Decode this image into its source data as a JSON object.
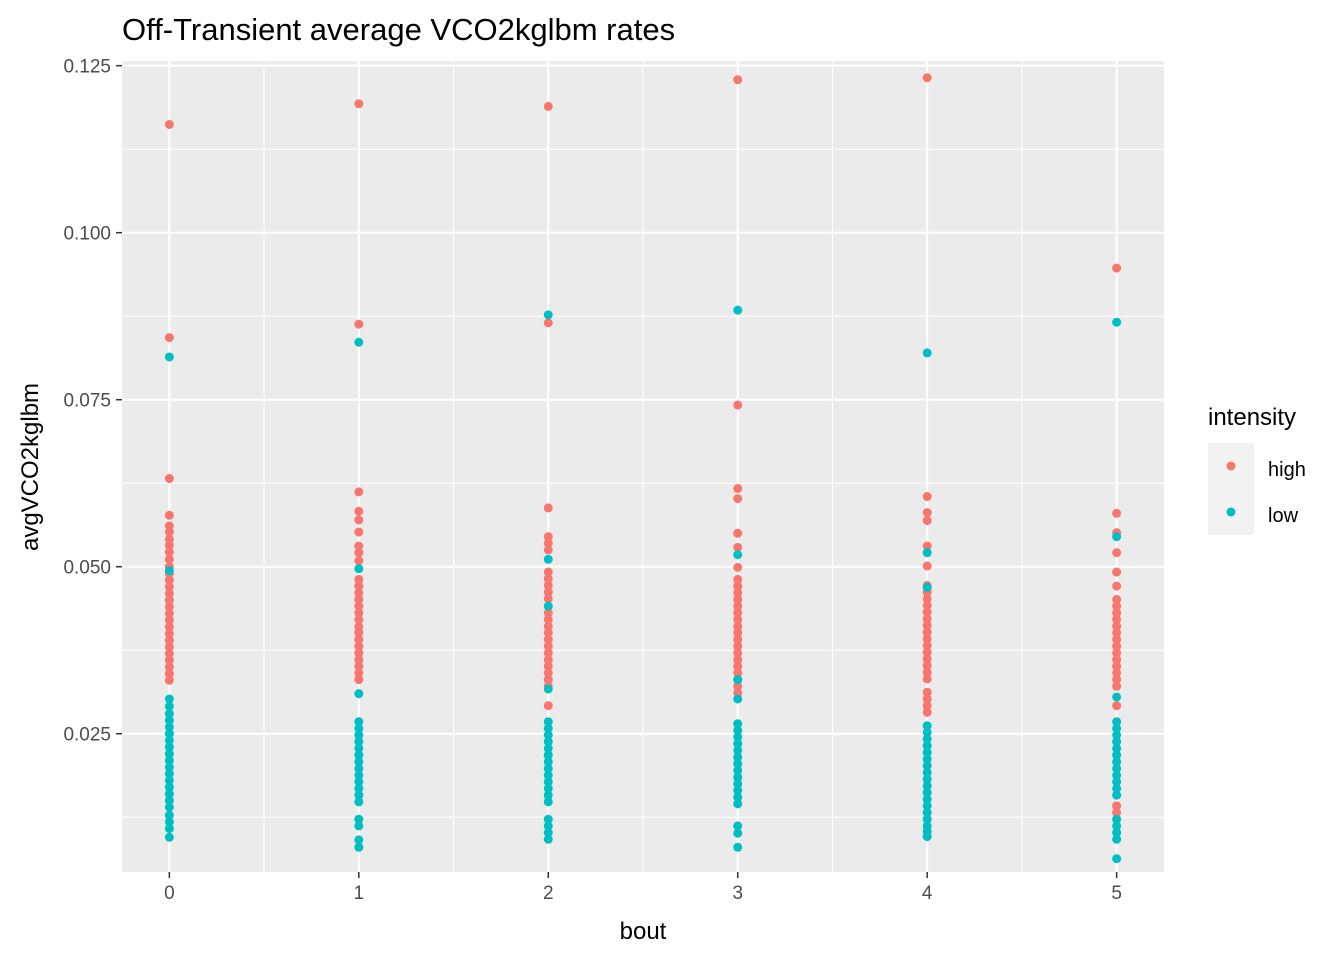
{
  "chart_data": {
    "type": "scatter",
    "title": "Off-Transient average VCO2kglbm rates",
    "xlabel": "bout",
    "ylabel": "avgVCO2kglbm",
    "xlim": [
      -0.25,
      5.25
    ],
    "ylim": [
      0.0043,
      0.1257
    ],
    "x_ticks": [
      "0",
      "1",
      "2",
      "3",
      "4",
      "5"
    ],
    "y_ticks": [
      "0.025",
      "0.050",
      "0.075",
      "0.100",
      "0.125"
    ],
    "grid": true,
    "legend": {
      "title": "intensity",
      "position": "right"
    },
    "series": [
      {
        "name": "high",
        "color": "#F8766D",
        "points": [
          [
            0,
            0.1162
          ],
          [
            0,
            0.0843
          ],
          [
            0,
            0.0632
          ],
          [
            0,
            0.0577
          ],
          [
            0,
            0.0561
          ],
          [
            0,
            0.0552
          ],
          [
            0,
            0.0541
          ],
          [
            0,
            0.0532
          ],
          [
            0,
            0.0522
          ],
          [
            0,
            0.0511
          ],
          [
            0,
            0.05
          ],
          [
            0,
            0.049
          ],
          [
            0,
            0.048
          ],
          [
            0,
            0.047
          ],
          [
            0,
            0.046
          ],
          [
            0,
            0.045
          ],
          [
            0,
            0.044
          ],
          [
            0,
            0.043
          ],
          [
            0,
            0.042
          ],
          [
            0,
            0.041
          ],
          [
            0,
            0.04
          ],
          [
            0,
            0.039
          ],
          [
            0,
            0.038
          ],
          [
            0,
            0.037
          ],
          [
            0,
            0.036
          ],
          [
            0,
            0.035
          ],
          [
            0,
            0.034
          ],
          [
            0,
            0.033
          ],
          [
            1,
            0.1193
          ],
          [
            1,
            0.0863
          ],
          [
            1,
            0.0612
          ],
          [
            1,
            0.0583
          ],
          [
            1,
            0.057
          ],
          [
            1,
            0.0552
          ],
          [
            1,
            0.0531
          ],
          [
            1,
            0.0521
          ],
          [
            1,
            0.0509
          ],
          [
            1,
            0.0481
          ],
          [
            1,
            0.0471
          ],
          [
            1,
            0.0461
          ],
          [
            1,
            0.0451
          ],
          [
            1,
            0.0441
          ],
          [
            1,
            0.0431
          ],
          [
            1,
            0.0421
          ],
          [
            1,
            0.041
          ],
          [
            1,
            0.0401
          ],
          [
            1,
            0.0391
          ],
          [
            1,
            0.0381
          ],
          [
            1,
            0.0371
          ],
          [
            1,
            0.0361
          ],
          [
            1,
            0.0351
          ],
          [
            1,
            0.0341
          ],
          [
            1,
            0.0331
          ],
          [
            2,
            0.1189
          ],
          [
            2,
            0.0865
          ],
          [
            2,
            0.0588
          ],
          [
            2,
            0.0545
          ],
          [
            2,
            0.0535
          ],
          [
            2,
            0.0525
          ],
          [
            2,
            0.0492
          ],
          [
            2,
            0.0482
          ],
          [
            2,
            0.0472
          ],
          [
            2,
            0.0462
          ],
          [
            2,
            0.0452
          ],
          [
            2,
            0.0431
          ],
          [
            2,
            0.0421
          ],
          [
            2,
            0.0411
          ],
          [
            2,
            0.0401
          ],
          [
            2,
            0.0391
          ],
          [
            2,
            0.0381
          ],
          [
            2,
            0.0371
          ],
          [
            2,
            0.0361
          ],
          [
            2,
            0.0351
          ],
          [
            2,
            0.0341
          ],
          [
            2,
            0.0331
          ],
          [
            2,
            0.0321
          ],
          [
            2,
            0.0292
          ],
          [
            3,
            0.1229
          ],
          [
            3,
            0.0742
          ],
          [
            3,
            0.0617
          ],
          [
            3,
            0.0602
          ],
          [
            3,
            0.055
          ],
          [
            3,
            0.0529
          ],
          [
            3,
            0.0499
          ],
          [
            3,
            0.0481
          ],
          [
            3,
            0.0471
          ],
          [
            3,
            0.0461
          ],
          [
            3,
            0.0451
          ],
          [
            3,
            0.0441
          ],
          [
            3,
            0.0431
          ],
          [
            3,
            0.0421
          ],
          [
            3,
            0.0411
          ],
          [
            3,
            0.0401
          ],
          [
            3,
            0.0391
          ],
          [
            3,
            0.0381
          ],
          [
            3,
            0.0371
          ],
          [
            3,
            0.0361
          ],
          [
            3,
            0.0351
          ],
          [
            3,
            0.0341
          ],
          [
            3,
            0.0331
          ],
          [
            3,
            0.0321
          ],
          [
            3,
            0.0311
          ],
          [
            4,
            0.1232
          ],
          [
            4,
            0.0605
          ],
          [
            4,
            0.0581
          ],
          [
            4,
            0.0569
          ],
          [
            4,
            0.0531
          ],
          [
            4,
            0.0501
          ],
          [
            4,
            0.0472
          ],
          [
            4,
            0.0462
          ],
          [
            4,
            0.0452
          ],
          [
            4,
            0.0442
          ],
          [
            4,
            0.0432
          ],
          [
            4,
            0.0422
          ],
          [
            4,
            0.0412
          ],
          [
            4,
            0.0402
          ],
          [
            4,
            0.0392
          ],
          [
            4,
            0.0382
          ],
          [
            4,
            0.0372
          ],
          [
            4,
            0.0362
          ],
          [
            4,
            0.0352
          ],
          [
            4,
            0.0342
          ],
          [
            4,
            0.0332
          ],
          [
            4,
            0.0312
          ],
          [
            4,
            0.0302
          ],
          [
            4,
            0.0292
          ],
          [
            4,
            0.0282
          ],
          [
            5,
            0.0947
          ],
          [
            5,
            0.058
          ],
          [
            5,
            0.0551
          ],
          [
            5,
            0.0521
          ],
          [
            5,
            0.0492
          ],
          [
            5,
            0.0471
          ],
          [
            5,
            0.0451
          ],
          [
            5,
            0.0441
          ],
          [
            5,
            0.0431
          ],
          [
            5,
            0.0421
          ],
          [
            5,
            0.0411
          ],
          [
            5,
            0.0401
          ],
          [
            5,
            0.0391
          ],
          [
            5,
            0.0381
          ],
          [
            5,
            0.0371
          ],
          [
            5,
            0.0361
          ],
          [
            5,
            0.0351
          ],
          [
            5,
            0.0341
          ],
          [
            5,
            0.0331
          ],
          [
            5,
            0.0321
          ],
          [
            5,
            0.0292
          ],
          [
            5,
            0.0142
          ],
          [
            5,
            0.0132
          ]
        ]
      },
      {
        "name": "low",
        "color": "#00BFC4",
        "points": [
          [
            0,
            0.0814
          ],
          [
            0,
            0.0494
          ],
          [
            0,
            0.0302
          ],
          [
            0,
            0.0291
          ],
          [
            0,
            0.028
          ],
          [
            0,
            0.027
          ],
          [
            0,
            0.026
          ],
          [
            0,
            0.025
          ],
          [
            0,
            0.024
          ],
          [
            0,
            0.023
          ],
          [
            0,
            0.022
          ],
          [
            0,
            0.021
          ],
          [
            0,
            0.02
          ],
          [
            0,
            0.019
          ],
          [
            0,
            0.018
          ],
          [
            0,
            0.017
          ],
          [
            0,
            0.016
          ],
          [
            0,
            0.015
          ],
          [
            0,
            0.014
          ],
          [
            0,
            0.0128
          ],
          [
            0,
            0.0118
          ],
          [
            0,
            0.0108
          ],
          [
            0,
            0.0095
          ],
          [
            1,
            0.0836
          ],
          [
            1,
            0.0497
          ],
          [
            1,
            0.031
          ],
          [
            1,
            0.0268
          ],
          [
            1,
            0.0258
          ],
          [
            1,
            0.0248
          ],
          [
            1,
            0.0238
          ],
          [
            1,
            0.0228
          ],
          [
            1,
            0.0218
          ],
          [
            1,
            0.0208
          ],
          [
            1,
            0.0198
          ],
          [
            1,
            0.0188
          ],
          [
            1,
            0.0178
          ],
          [
            1,
            0.0168
          ],
          [
            1,
            0.0158
          ],
          [
            1,
            0.0148
          ],
          [
            1,
            0.0122
          ],
          [
            1,
            0.0112
          ],
          [
            1,
            0.0091
          ],
          [
            1,
            0.008
          ],
          [
            2,
            0.0877
          ],
          [
            2,
            0.0511
          ],
          [
            2,
            0.0441
          ],
          [
            2,
            0.0317
          ],
          [
            2,
            0.0268
          ],
          [
            2,
            0.0258
          ],
          [
            2,
            0.0248
          ],
          [
            2,
            0.0238
          ],
          [
            2,
            0.0228
          ],
          [
            2,
            0.0218
          ],
          [
            2,
            0.0208
          ],
          [
            2,
            0.0198
          ],
          [
            2,
            0.0188
          ],
          [
            2,
            0.0178
          ],
          [
            2,
            0.0168
          ],
          [
            2,
            0.0158
          ],
          [
            2,
            0.0148
          ],
          [
            2,
            0.0122
          ],
          [
            2,
            0.0112
          ],
          [
            2,
            0.0102
          ],
          [
            2,
            0.0092
          ],
          [
            3,
            0.0884
          ],
          [
            3,
            0.0518
          ],
          [
            3,
            0.0331
          ],
          [
            3,
            0.0302
          ],
          [
            3,
            0.0265
          ],
          [
            3,
            0.0255
          ],
          [
            3,
            0.0245
          ],
          [
            3,
            0.0235
          ],
          [
            3,
            0.0225
          ],
          [
            3,
            0.0215
          ],
          [
            3,
            0.0205
          ],
          [
            3,
            0.0195
          ],
          [
            3,
            0.0185
          ],
          [
            3,
            0.0175
          ],
          [
            3,
            0.0165
          ],
          [
            3,
            0.0155
          ],
          [
            3,
            0.0145
          ],
          [
            3,
            0.0112
          ],
          [
            3,
            0.0101
          ],
          [
            3,
            0.008
          ],
          [
            4,
            0.082
          ],
          [
            4,
            0.0521
          ],
          [
            4,
            0.0469
          ],
          [
            4,
            0.0262
          ],
          [
            4,
            0.0252
          ],
          [
            4,
            0.0242
          ],
          [
            4,
            0.0232
          ],
          [
            4,
            0.0222
          ],
          [
            4,
            0.0212
          ],
          [
            4,
            0.0202
          ],
          [
            4,
            0.0192
          ],
          [
            4,
            0.0182
          ],
          [
            4,
            0.0172
          ],
          [
            4,
            0.0162
          ],
          [
            4,
            0.0152
          ],
          [
            4,
            0.0142
          ],
          [
            4,
            0.0132
          ],
          [
            4,
            0.0122
          ],
          [
            4,
            0.0112
          ],
          [
            4,
            0.0104
          ],
          [
            4,
            0.0096
          ],
          [
            5,
            0.0866
          ],
          [
            5,
            0.0545
          ],
          [
            5,
            0.0305
          ],
          [
            5,
            0.0268
          ],
          [
            5,
            0.0258
          ],
          [
            5,
            0.0248
          ],
          [
            5,
            0.0238
          ],
          [
            5,
            0.0228
          ],
          [
            5,
            0.0218
          ],
          [
            5,
            0.0208
          ],
          [
            5,
            0.0198
          ],
          [
            5,
            0.0188
          ],
          [
            5,
            0.0178
          ],
          [
            5,
            0.0168
          ],
          [
            5,
            0.0158
          ],
          [
            5,
            0.0122
          ],
          [
            5,
            0.0112
          ],
          [
            5,
            0.0102
          ],
          [
            5,
            0.0092
          ],
          [
            5,
            0.0063
          ]
        ]
      }
    ]
  }
}
